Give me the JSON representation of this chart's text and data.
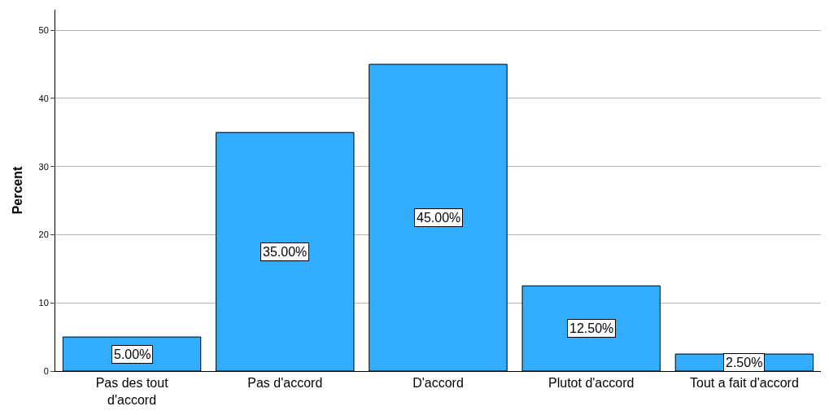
{
  "chart_data": {
    "type": "bar",
    "ylabel": "Percent",
    "categories": [
      "Pas des tout d'accord",
      "Pas d'accord",
      "D'accord",
      "Plutot d'accord",
      "Tout a fait d'accord"
    ],
    "values": [
      5,
      35,
      45,
      12.5,
      2.5
    ],
    "value_labels": [
      "5.00%",
      "35.00%",
      "45.00%",
      "12.50%",
      "2.50%"
    ],
    "color": "#33adff",
    "ylim": [
      0,
      53
    ],
    "yticks": [
      0,
      10,
      20,
      30,
      40,
      50
    ],
    "grid": "y"
  }
}
